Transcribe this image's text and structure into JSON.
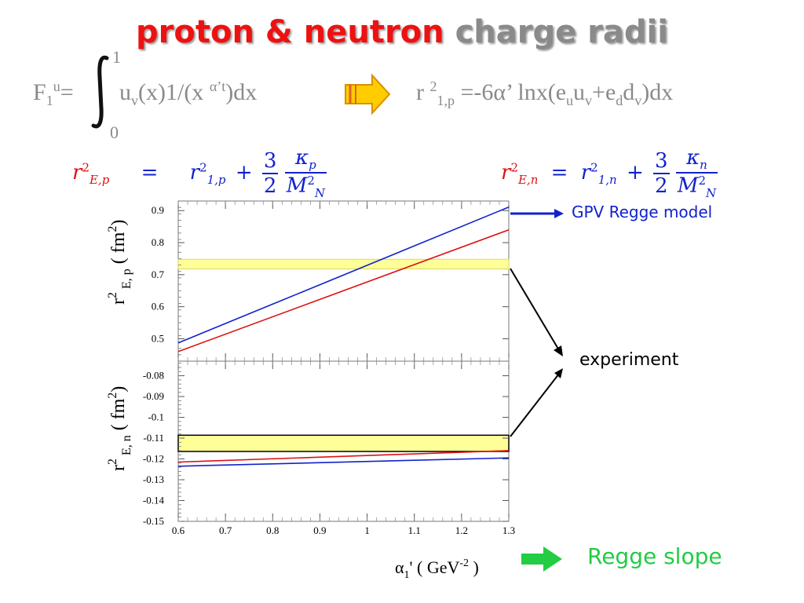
{
  "title": {
    "part1": "proton",
    "part2": "&",
    "part3": "neutron",
    "part4": "charge radii"
  },
  "formula_top": {
    "lhs": "F",
    "lhs_sub": "1",
    "lhs_sup": "u",
    "eq": "=",
    "upper": "1",
    "lower": "0",
    "integrand_a": "u",
    "integrand_sub": "v",
    "integrand_b": "(x)1/(x",
    "integrand_sup": "α’t",
    "integrand_c": ")dx",
    "rhs_r": "r",
    "rhs_sup": "2",
    "rhs_sub": "1,p",
    "rhs_a": "=-6α’ lnx(e",
    "rhs_sub_u": "u",
    "rhs_b": "u",
    "rhs_sub_v1": "v",
    "rhs_c": "+e",
    "rhs_sub_d": "d",
    "rhs_d": "d",
    "rhs_sub_v2": "v",
    "rhs_e": ")dx"
  },
  "formula_left": {
    "lhs": "r",
    "lhs_sup": "2",
    "lhs_sub": "E,p",
    "eq": "=",
    "r": "r",
    "r_sup": "2",
    "r_sub": "1,p",
    "plus": "+",
    "frac_num": "3",
    "frac_den": "2",
    "kappa": "κ",
    "kappa_sub": "p",
    "mass": "M",
    "mass_sup": "2",
    "mass_sub": "N"
  },
  "formula_right": {
    "lhs": "r",
    "lhs_sup": "2",
    "lhs_sub": "E,n",
    "eq": "=",
    "r": "r",
    "r_sup": "2",
    "r_sub": "1,n",
    "plus": "+",
    "frac_num": "3",
    "frac_den": "2",
    "kappa": "κ",
    "kappa_sub": "n",
    "mass": "M",
    "mass_sup": "2",
    "mass_sub": "N"
  },
  "annotations": {
    "gpv": "GPV Regge model",
    "experiment": "experiment",
    "regge_slope": "Regge slope"
  },
  "colors": {
    "red": "#dd1111",
    "blue": "#1122cc",
    "band": "#ffff99",
    "green": "#22cc44",
    "arrow_orange": "#ffcc00"
  },
  "chart_data": [
    {
      "type": "line",
      "ylabel": "r²E, p ( fm²)",
      "xlim": [
        0.6,
        1.3
      ],
      "ylim": [
        0.43,
        0.93
      ],
      "x_ticks": [
        "0.6",
        "0.7",
        "0.8",
        "0.9",
        "1",
        "1.1",
        "1.2",
        "1.3"
      ],
      "y_ticks": [
        0.9,
        0.8,
        0.7,
        0.6,
        0.5
      ],
      "y_tick_labels": [
        "0.9",
        "0.8",
        "0.7",
        "0.6",
        "0.5"
      ],
      "x": [
        0.6,
        1.3
      ],
      "series": [
        {
          "color": "#1122cc",
          "values": [
            0.487,
            0.911
          ]
        },
        {
          "color": "#dd1111",
          "values": [
            0.46,
            0.84
          ]
        }
      ],
      "band": {
        "color": "#ffff99",
        "y_low": 0.718,
        "y_high": 0.748
      }
    },
    {
      "type": "line",
      "xlabel": "α1' ( GeV-2 )",
      "ylabel": "r²E, n ( fm²)",
      "xlim": [
        0.6,
        1.3
      ],
      "ylim": [
        -0.15,
        -0.073
      ],
      "x_ticks": [
        "0.6",
        "0.7",
        "0.8",
        "0.9",
        "1",
        "1.1",
        "1.2",
        "1.3"
      ],
      "y_ticks": [
        -0.08,
        -0.09,
        -0.1,
        -0.11,
        -0.12,
        -0.13,
        -0.14,
        -0.15
      ],
      "y_tick_labels": [
        "-0.08",
        "-0.09",
        "-0.1",
        "-0.11",
        "-0.12",
        "-0.13",
        "-0.14",
        "-0.15"
      ],
      "x": [
        0.6,
        1.3
      ],
      "series": [
        {
          "color": "#dd1111",
          "values": [
            -0.1215,
            -0.116
          ]
        },
        {
          "color": "#1122cc",
          "values": [
            -0.1235,
            -0.1195
          ]
        }
      ],
      "band": {
        "color": "#ffff99",
        "y_low": -0.1164,
        "y_high": -0.1086
      }
    }
  ]
}
